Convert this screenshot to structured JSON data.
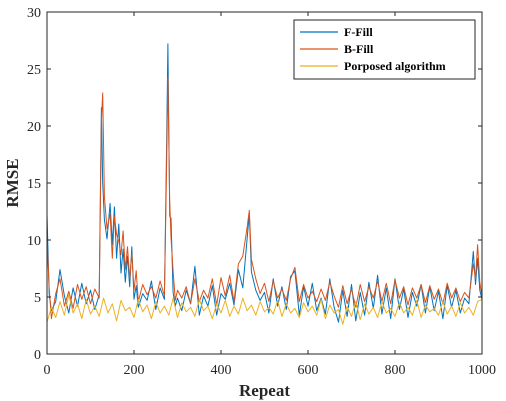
{
  "chart_data": {
    "type": "line",
    "xlabel": "Repeat",
    "ylabel": "RMSE",
    "xlim": [
      0,
      1000
    ],
    "ylim": [
      0,
      30
    ],
    "xticks": [
      0,
      200,
      400,
      600,
      800,
      1000
    ],
    "yticks": [
      0,
      5,
      10,
      15,
      20,
      25,
      30
    ],
    "grid": false,
    "legend_position": "top-right",
    "series": [
      {
        "name": "F-Fill",
        "color": "#0072BD",
        "x": [
          0,
          5,
          10,
          20,
          30,
          40,
          50,
          60,
          70,
          80,
          90,
          100,
          110,
          120,
          125,
          128,
          132,
          138,
          145,
          150,
          155,
          160,
          165,
          170,
          175,
          180,
          185,
          190,
          195,
          200,
          205,
          210,
          220,
          230,
          240,
          250,
          260,
          270,
          275,
          278,
          282,
          285,
          290,
          295,
          300,
          310,
          320,
          330,
          340,
          350,
          360,
          370,
          380,
          390,
          400,
          410,
          420,
          430,
          440,
          450,
          460,
          465,
          470,
          480,
          490,
          500,
          510,
          520,
          530,
          540,
          550,
          560,
          570,
          580,
          590,
          600,
          610,
          620,
          630,
          640,
          650,
          660,
          670,
          680,
          690,
          700,
          710,
          720,
          730,
          740,
          750,
          760,
          770,
          780,
          790,
          800,
          810,
          820,
          830,
          840,
          850,
          860,
          870,
          880,
          890,
          900,
          910,
          920,
          930,
          940,
          950,
          960,
          970,
          980,
          985,
          990,
          995,
          1000
        ],
        "y": [
          12.3,
          5.2,
          3.8,
          4.6,
          7.4,
          5.1,
          3.6,
          5.8,
          4.2,
          6.2,
          4.4,
          5.6,
          3.9,
          5.2,
          21.6,
          15.0,
          11.8,
          10.1,
          13.2,
          9.6,
          12.9,
          8.4,
          11.4,
          7.1,
          9.2,
          6.3,
          8.6,
          5.9,
          9.4,
          4.8,
          6.0,
          4.1,
          5.3,
          4.7,
          6.4,
          3.9,
          5.8,
          4.8,
          18.3,
          27.2,
          12.1,
          11.9,
          5.4,
          4.2,
          4.9,
          3.8,
          5.6,
          4.4,
          7.7,
          3.4,
          5.1,
          4.2,
          6.0,
          3.4,
          5.3,
          4.8,
          6.2,
          4.3,
          7.4,
          5.8,
          10.1,
          12.3,
          7.2,
          5.6,
          4.7,
          5.4,
          3.6,
          6.6,
          4.2,
          5.9,
          3.9,
          6.8,
          7.3,
          3.4,
          5.9,
          4.2,
          6.2,
          3.8,
          4.9,
          3.5,
          6.6,
          4.1,
          2.8,
          5.6,
          3.3,
          6.1,
          2.9,
          5.4,
          3.4,
          6.3,
          4.0,
          6.9,
          3.5,
          5.8,
          3.1,
          6.6,
          3.9,
          5.7,
          3.2,
          5.4,
          4.2,
          6.1,
          3.6,
          5.9,
          3.8,
          5.5,
          3.1,
          6.0,
          4.1,
          5.6,
          3.6,
          4.9,
          4.4,
          9.0,
          6.1,
          8.4,
          5.6,
          4.8
        ]
      },
      {
        "name": "B-Fill",
        "color": "#D95319",
        "x": [
          0,
          5,
          10,
          20,
          30,
          40,
          50,
          60,
          70,
          80,
          90,
          100,
          110,
          120,
          125,
          128,
          132,
          138,
          145,
          150,
          155,
          160,
          165,
          170,
          175,
          180,
          185,
          190,
          195,
          200,
          205,
          210,
          220,
          230,
          240,
          250,
          260,
          270,
          275,
          278,
          282,
          285,
          290,
          295,
          300,
          310,
          320,
          330,
          340,
          350,
          360,
          370,
          380,
          390,
          400,
          410,
          420,
          430,
          440,
          450,
          460,
          465,
          470,
          480,
          490,
          500,
          510,
          520,
          530,
          540,
          550,
          560,
          570,
          580,
          590,
          600,
          610,
          620,
          630,
          640,
          650,
          660,
          670,
          680,
          690,
          700,
          710,
          720,
          730,
          740,
          750,
          760,
          770,
          780,
          790,
          800,
          810,
          820,
          830,
          840,
          850,
          860,
          870,
          880,
          890,
          900,
          910,
          920,
          930,
          940,
          950,
          960,
          970,
          980,
          985,
          990,
          995,
          1000
        ],
        "y": [
          10.1,
          5.8,
          3.1,
          5.3,
          6.6,
          4.2,
          5.5,
          4.0,
          6.1,
          4.8,
          5.9,
          4.4,
          5.7,
          4.9,
          20.4,
          22.9,
          13.8,
          11.0,
          12.3,
          8.4,
          12.1,
          10.5,
          9.9,
          8.7,
          10.8,
          7.4,
          9.4,
          6.6,
          8.8,
          5.6,
          7.3,
          4.6,
          6.1,
          5.2,
          5.9,
          4.9,
          6.4,
          5.1,
          16.4,
          24.3,
          13.4,
          10.2,
          7.3,
          4.7,
          5.6,
          4.9,
          5.9,
          4.4,
          6.6,
          4.6,
          5.6,
          4.9,
          6.6,
          4.3,
          6.7,
          5.1,
          6.9,
          4.6,
          7.9,
          8.6,
          11.1,
          12.6,
          8.3,
          6.6,
          5.3,
          6.2,
          4.6,
          6.4,
          4.9,
          5.7,
          4.7,
          6.6,
          7.6,
          4.6,
          6.1,
          4.9,
          5.5,
          4.6,
          5.7,
          4.7,
          6.3,
          5.1,
          4.1,
          6.0,
          4.4,
          5.7,
          4.1,
          6.1,
          4.6,
          5.9,
          4.9,
          6.4,
          4.6,
          6.2,
          4.4,
          6.5,
          4.9,
          5.9,
          4.3,
          5.8,
          4.9,
          6.1,
          4.5,
          6.0,
          4.8,
          5.7,
          4.4,
          6.2,
          4.9,
          5.8,
          4.6,
          5.4,
          4.9,
          7.9,
          6.6,
          9.6,
          6.3,
          5.1
        ]
      },
      {
        "name": "Porposed algorithm",
        "color": "#EDB120",
        "x": [
          0,
          10,
          20,
          30,
          40,
          50,
          60,
          70,
          80,
          90,
          100,
          110,
          120,
          130,
          140,
          150,
          160,
          170,
          180,
          190,
          200,
          210,
          220,
          230,
          240,
          250,
          260,
          270,
          280,
          290,
          300,
          310,
          320,
          330,
          340,
          350,
          360,
          370,
          380,
          390,
          400,
          410,
          420,
          430,
          440,
          450,
          460,
          470,
          480,
          490,
          500,
          510,
          520,
          530,
          540,
          550,
          560,
          570,
          580,
          590,
          600,
          610,
          620,
          630,
          640,
          650,
          660,
          670,
          680,
          690,
          700,
          710,
          720,
          730,
          740,
          750,
          760,
          770,
          780,
          790,
          800,
          810,
          820,
          830,
          840,
          850,
          860,
          870,
          880,
          890,
          900,
          910,
          920,
          930,
          940,
          950,
          960,
          970,
          980,
          990,
          1000
        ],
        "y": [
          2.8,
          4.1,
          3.2,
          4.6,
          3.4,
          5.2,
          3.6,
          4.4,
          3.1,
          4.8,
          3.5,
          4.2,
          3.3,
          4.9,
          3.6,
          4.4,
          2.9,
          4.7,
          3.8,
          4.1,
          3.2,
          4.8,
          3.7,
          4.3,
          3.1,
          4.6,
          3.6,
          4.2,
          3.4,
          4.9,
          3.2,
          4.5,
          3.7,
          4.1,
          3.3,
          4.8,
          3.8,
          4.2,
          3.1,
          4.4,
          3.6,
          4.7,
          3.3,
          4.2,
          3.5,
          4.9,
          3.8,
          4.3,
          3.4,
          4.6,
          3.7,
          4.1,
          3.5,
          4.7,
          3.3,
          4.4,
          3.6,
          4.0,
          3.2,
          4.5,
          3.7,
          4.2,
          3.4,
          4.8,
          3.1,
          4.3,
          3.6,
          3.9,
          2.6,
          4.2,
          3.3,
          4.6,
          3.0,
          4.4,
          3.5,
          4.1,
          3.2,
          4.6,
          3.6,
          4.0,
          3.3,
          4.5,
          3.6,
          4.1,
          3.4,
          4.7,
          3.2,
          4.3,
          3.7,
          4.0,
          3.4,
          4.6,
          3.5,
          4.2,
          3.3,
          4.5,
          3.6,
          4.1,
          3.4,
          4.6,
          4.8
        ]
      }
    ]
  }
}
